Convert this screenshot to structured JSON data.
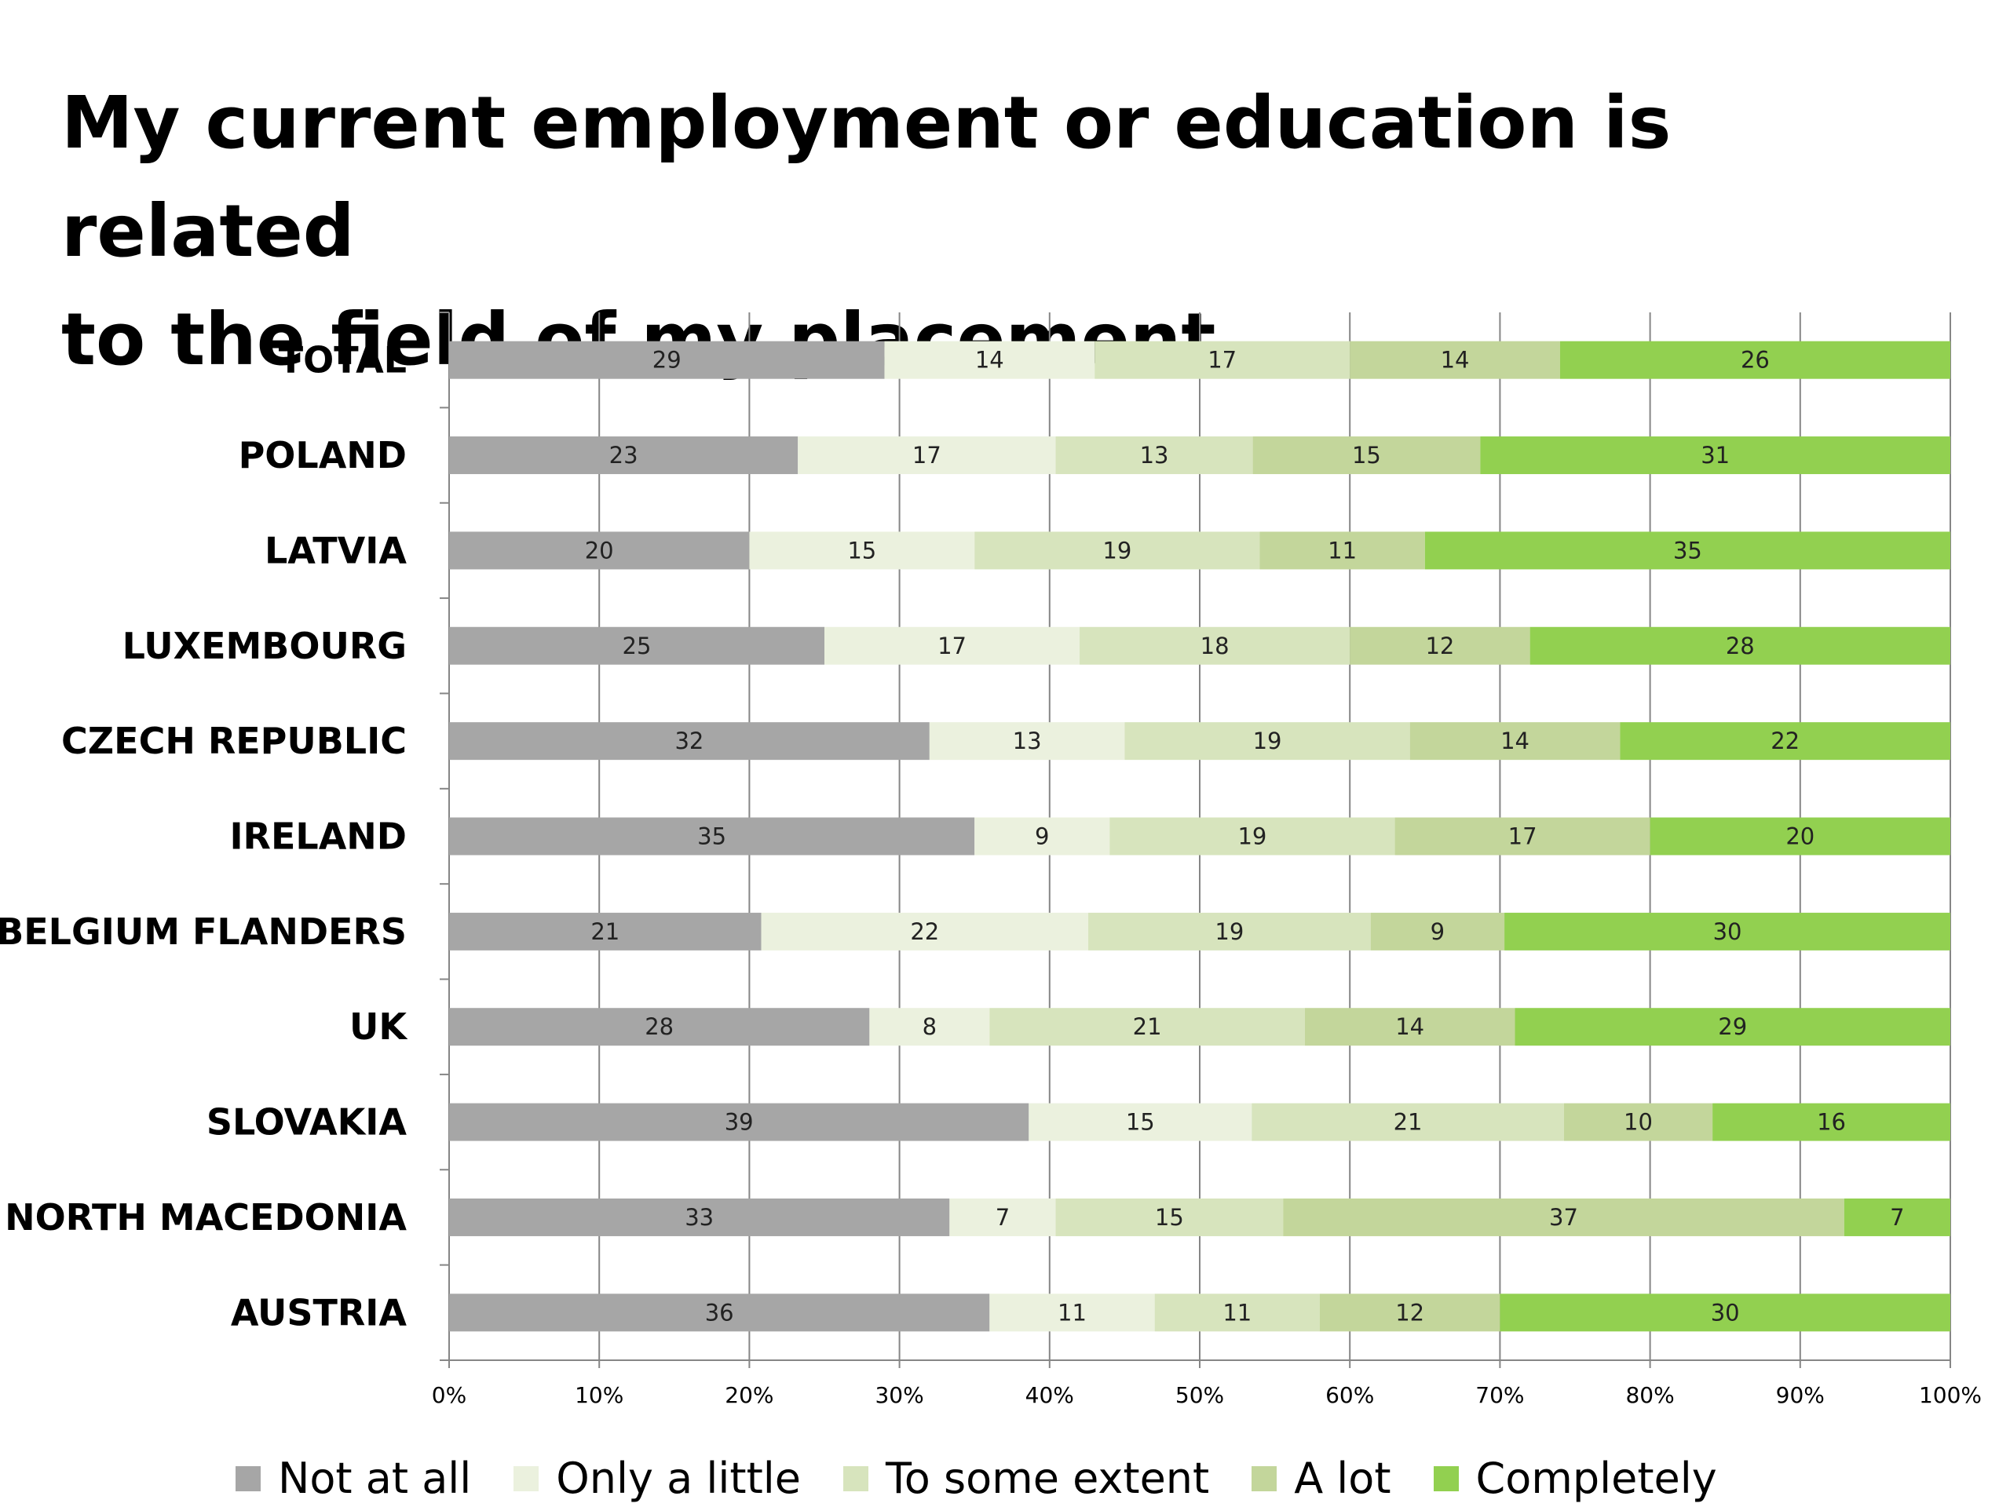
{
  "chart_data": {
    "type": "bar",
    "orientation": "horizontal",
    "stacked": "percent",
    "title": "My current employment or education is related to the field of my placement …",
    "title_lines": [
      "My current employment or education is related",
      "to the field of my placement …"
    ],
    "categories": [
      "TOTAL",
      "POLAND",
      "LATVIA",
      "LUXEMBOURG",
      "CZECH REPUBLIC",
      "IRELAND",
      "BELGIUM FLANDERS",
      "UK",
      "SLOVAKIA",
      "NORTH MACEDONIA",
      "AUSTRIA"
    ],
    "series": [
      {
        "name": "Not at all",
        "color": "#a6a6a6",
        "values": [
          29,
          23,
          20,
          25,
          32,
          35,
          21,
          28,
          39,
          33,
          36
        ]
      },
      {
        "name": "Only a little",
        "color": "#ebf1de",
        "values": [
          14,
          17,
          15,
          17,
          13,
          9,
          22,
          8,
          15,
          7,
          11
        ]
      },
      {
        "name": "To some extent",
        "color": "#d7e4bd",
        "values": [
          17,
          13,
          19,
          18,
          19,
          19,
          19,
          21,
          21,
          15,
          11
        ]
      },
      {
        "name": "A lot",
        "color": "#c3d69b",
        "values": [
          14,
          15,
          11,
          12,
          14,
          17,
          9,
          14,
          10,
          37,
          12
        ]
      },
      {
        "name": "Completely",
        "color": "#92d050",
        "values": [
          26,
          31,
          35,
          28,
          22,
          20,
          30,
          29,
          16,
          7,
          30
        ]
      }
    ],
    "xlim": [
      0,
      100
    ],
    "xticks": [
      "0%",
      "10%",
      "20%",
      "30%",
      "40%",
      "50%",
      "60%",
      "70%",
      "80%",
      "90%",
      "100%"
    ],
    "grid": true,
    "legend_position": "bottom"
  }
}
